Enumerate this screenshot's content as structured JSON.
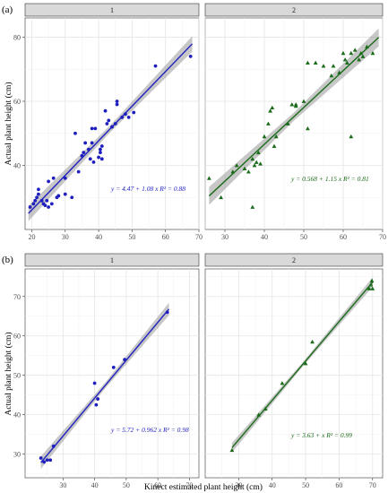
{
  "figure": {
    "ylabel": "Actual plant height (cm)",
    "xlabel": "Kinect estimated plant height (cm)"
  },
  "chart_data": [
    {
      "type": "scatter",
      "row_label": "(a)",
      "facet": "1",
      "color": "#1f1fbf",
      "marker": "circle",
      "xlim": [
        18,
        70
      ],
      "ylim": [
        20,
        86
      ],
      "xticks": [
        20,
        30,
        40,
        50,
        60,
        70
      ],
      "yticks": [
        40,
        60,
        80
      ],
      "ylabel": "Actual plant height (cm)",
      "equation": "y = 4.47 + 1.08 x   R² = 0.88",
      "fit": {
        "intercept": 4.47,
        "slope": 1.08,
        "x_range": [
          19,
          68
        ],
        "band": 2.4
      },
      "points": [
        [
          19.5,
          27
        ],
        [
          20.5,
          28
        ],
        [
          21,
          29
        ],
        [
          21.5,
          30
        ],
        [
          22,
          31
        ],
        [
          22,
          32.5
        ],
        [
          23,
          29
        ],
        [
          23.5,
          28
        ],
        [
          24,
          27.5
        ],
        [
          24.5,
          29
        ],
        [
          25,
          27
        ],
        [
          25,
          35
        ],
        [
          26,
          28
        ],
        [
          26.5,
          36
        ],
        [
          27.5,
          30
        ],
        [
          28,
          30.5
        ],
        [
          30,
          31
        ],
        [
          30,
          36
        ],
        [
          32,
          30
        ],
        [
          33,
          50
        ],
        [
          34,
          38
        ],
        [
          35,
          43
        ],
        [
          35.5,
          44
        ],
        [
          36,
          47
        ],
        [
          37,
          45
        ],
        [
          37.5,
          42
        ],
        [
          38,
          47
        ],
        [
          38,
          51.5
        ],
        [
          38.5,
          41
        ],
        [
          39,
          51.5
        ],
        [
          40,
          42.5
        ],
        [
          40.5,
          44
        ],
        [
          40.5,
          45
        ],
        [
          41,
          46
        ],
        [
          41,
          42
        ],
        [
          42,
          57
        ],
        [
          42.5,
          53
        ],
        [
          43,
          54
        ],
        [
          44,
          52
        ],
        [
          45,
          53
        ],
        [
          45.5,
          59
        ],
        [
          45.5,
          60
        ],
        [
          47,
          55
        ],
        [
          48,
          56
        ],
        [
          49,
          55
        ],
        [
          50.5,
          56.5
        ],
        [
          57,
          71
        ],
        [
          67.5,
          74
        ]
      ]
    },
    {
      "type": "scatter",
      "row_label": "",
      "facet": "2",
      "color": "#1a6b1a",
      "marker": "triangle",
      "xlim": [
        25,
        70
      ],
      "ylim": [
        20,
        86
      ],
      "xticks": [
        30,
        40,
        50,
        60,
        70
      ],
      "yticks": [
        40,
        60,
        80
      ],
      "equation": "y = 0.568 + 1.15 x   R² = 0.81",
      "fit": {
        "intercept": 0.568,
        "slope": 1.15,
        "x_range": [
          26,
          69
        ],
        "band": 2.8
      },
      "points": [
        [
          26,
          36
        ],
        [
          29,
          30
        ],
        [
          32,
          38
        ],
        [
          33,
          40
        ],
        [
          35,
          39
        ],
        [
          36,
          38
        ],
        [
          37,
          27
        ],
        [
          37,
          42
        ],
        [
          37.5,
          40
        ],
        [
          38,
          41
        ],
        [
          38.5,
          44
        ],
        [
          39,
          40.5
        ],
        [
          40,
          49
        ],
        [
          41,
          53
        ],
        [
          41.5,
          57
        ],
        [
          42,
          58
        ],
        [
          42.5,
          46
        ],
        [
          43,
          49
        ],
        [
          46,
          53
        ],
        [
          47,
          59
        ],
        [
          48,
          59
        ],
        [
          48,
          58.5
        ],
        [
          50,
          60
        ],
        [
          51,
          51.5
        ],
        [
          51,
          72
        ],
        [
          53,
          72
        ],
        [
          55,
          71
        ],
        [
          57,
          68
        ],
        [
          57.5,
          71
        ],
        [
          59,
          69
        ],
        [
          60,
          75
        ],
        [
          60.5,
          73
        ],
        [
          61,
          72
        ],
        [
          62,
          49
        ],
        [
          62,
          75
        ],
        [
          63,
          76
        ],
        [
          64,
          73
        ],
        [
          64.5,
          75
        ],
        [
          65,
          74
        ],
        [
          66,
          77
        ],
        [
          67.5,
          75
        ]
      ]
    },
    {
      "type": "scatter",
      "row_label": "(b)",
      "facet": "1",
      "color": "#1f1fbf",
      "marker": "circle",
      "xlim": [
        18,
        73
      ],
      "ylim": [
        24,
        77
      ],
      "xticks": [
        30,
        40,
        50,
        60,
        70
      ],
      "yticks": [
        30,
        40,
        50,
        60,
        70
      ],
      "ylabel": "Actual plant height (cm)",
      "equation": "y = 5.72 + 0.962 x   R² = 0.98",
      "fit": {
        "intercept": 5.72,
        "slope": 0.962,
        "x_range": [
          23,
          63.5
        ],
        "band": 1.6
      },
      "points": [
        [
          23,
          29
        ],
        [
          24,
          28
        ],
        [
          25,
          28.5
        ],
        [
          26,
          28.5
        ],
        [
          27,
          32
        ],
        [
          40,
          48
        ],
        [
          40.5,
          42.5
        ],
        [
          41,
          44
        ],
        [
          46,
          52
        ],
        [
          49.5,
          54
        ],
        [
          63,
          66
        ]
      ]
    },
    {
      "type": "scatter",
      "row_label": "",
      "facet": "2",
      "color": "#1a6b1a",
      "marker": "triangle",
      "xlim": [
        20,
        73
      ],
      "ylim": [
        24,
        77
      ],
      "xticks": [
        30,
        40,
        50,
        60,
        70
      ],
      "yticks": [
        30,
        40,
        50,
        60,
        70
      ],
      "equation": "y = 3.63 + x   R² = 0.99",
      "fit": {
        "intercept": 3.63,
        "slope": 1.0,
        "x_range": [
          28,
          70
        ],
        "band": 1.2
      },
      "points": [
        [
          28,
          31
        ],
        [
          36,
          40
        ],
        [
          38,
          41.5
        ],
        [
          43,
          48
        ],
        [
          50,
          53
        ],
        [
          52,
          58.5
        ],
        [
          69,
          72
        ],
        [
          69.5,
          73
        ],
        [
          69.8,
          74
        ],
        [
          70,
          72
        ]
      ]
    }
  ]
}
